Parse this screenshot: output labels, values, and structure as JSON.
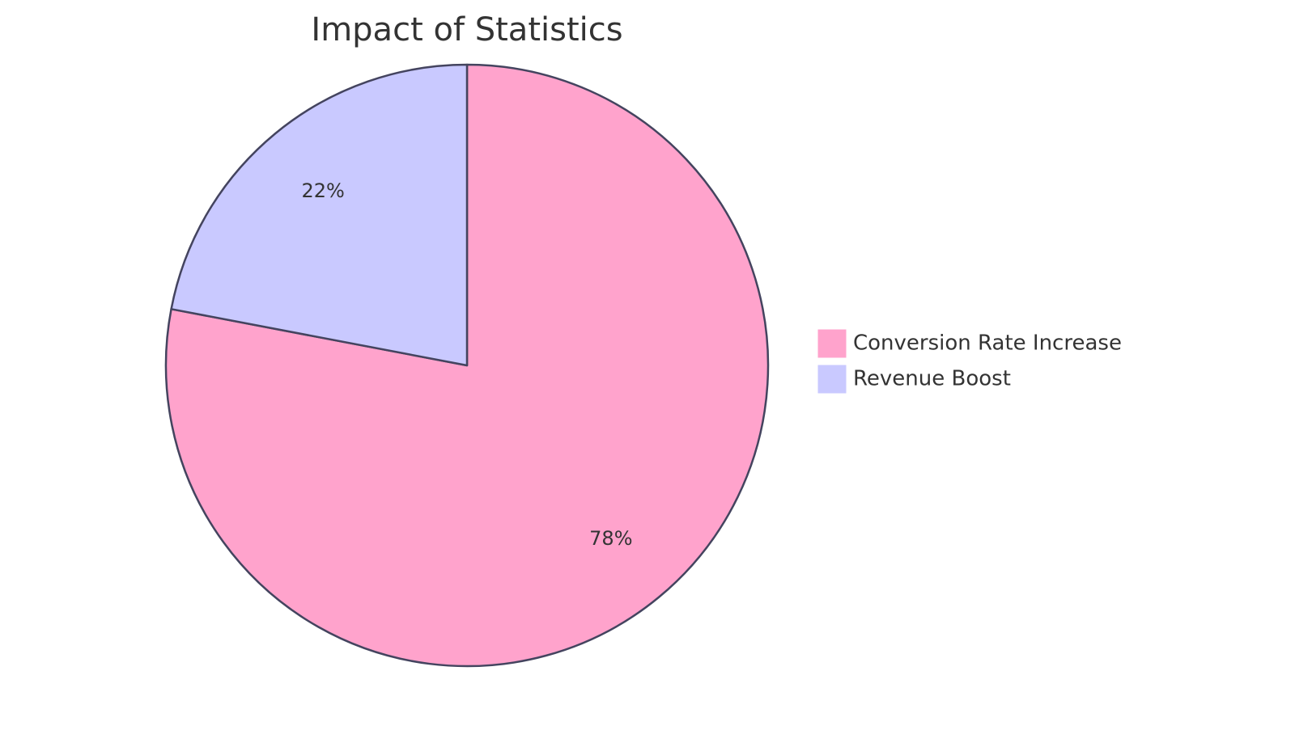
{
  "chart_data": {
    "type": "pie",
    "title": "Impact of Statistics",
    "slices": [
      {
        "label": "Conversion Rate Increase",
        "value": 78,
        "display": "78%",
        "color": "#FFA3CC"
      },
      {
        "label": "Revenue Boost",
        "value": 22,
        "display": "22%",
        "color": "#C9C9FF"
      }
    ],
    "start": "12 o'clock",
    "direction": "clockwise",
    "legend_position": "right",
    "stroke_color": "#44445F",
    "grid": false
  }
}
